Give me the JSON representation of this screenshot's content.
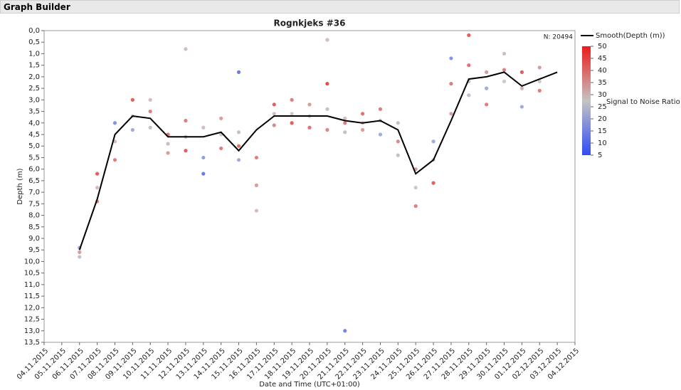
{
  "header": {
    "title": "Graph Builder"
  },
  "chart_data": {
    "type": "scatter",
    "title": "Rognkjeks #36",
    "x_label": "Date and Time (UTC+01:00)",
    "y_label": "Depth (m)",
    "count_label": "N: 20494",
    "y_reversed": true,
    "xlim": [
      "04.11.2015",
      "04.12.2015"
    ],
    "xticks": [
      "04.11.2015",
      "05.11.2015",
      "06.11.2015",
      "07.11.2015",
      "08.11.2015",
      "09.11.2015",
      "10.11.2015",
      "11.11.2015",
      "12.11.2015",
      "13.11.2015",
      "14.11.2015",
      "15.11.2015",
      "16.11.2015",
      "17.11.2015",
      "18.11.2015",
      "19.11.2015",
      "20.11.2015",
      "21.11.2015",
      "22.11.2015",
      "23.11.2015",
      "24.11.2015",
      "25.11.2015",
      "26.11.2015",
      "27.11.2015",
      "28.11.2015",
      "29.11.2015",
      "30.11.2015",
      "01.12.2015",
      "02.12.2015",
      "03.12.2015",
      "04.12.2015"
    ],
    "ylim": [
      0,
      13.5
    ],
    "yticks": [
      {
        "value": 0,
        "label": "0,0"
      },
      {
        "value": 0.5,
        "label": "0,5"
      },
      {
        "value": 1,
        "label": "1,0"
      },
      {
        "value": 1.5,
        "label": "1,5"
      },
      {
        "value": 2,
        "label": "2,0"
      },
      {
        "value": 2.5,
        "label": "2,5"
      },
      {
        "value": 3,
        "label": "3,0"
      },
      {
        "value": 3.5,
        "label": "3,5"
      },
      {
        "value": 4,
        "label": "4,0"
      },
      {
        "value": 4.5,
        "label": "4,5"
      },
      {
        "value": 5,
        "label": "5,0"
      },
      {
        "value": 5.5,
        "label": "5,5"
      },
      {
        "value": 6,
        "label": "6,0"
      },
      {
        "value": 6.5,
        "label": "6,5"
      },
      {
        "value": 7,
        "label": "7,0"
      },
      {
        "value": 7.5,
        "label": "7,5"
      },
      {
        "value": 8,
        "label": "8,0"
      },
      {
        "value": 8.5,
        "label": "8,5"
      },
      {
        "value": 9,
        "label": "9,0"
      },
      {
        "value": 9.5,
        "label": "9,5"
      },
      {
        "value": 10,
        "label": "10,0"
      },
      {
        "value": 10.5,
        "label": "10,5"
      },
      {
        "value": 11,
        "label": "11,0"
      },
      {
        "value": 11.5,
        "label": "11,5"
      },
      {
        "value": 12,
        "label": "12,0"
      },
      {
        "value": 12.5,
        "label": "12,5"
      },
      {
        "value": 13,
        "label": "13,0"
      },
      {
        "value": 13.5,
        "label": "13,5"
      }
    ],
    "points": {
      "x": [
        "06.11.2015",
        "06.11.2015",
        "06.11.2015",
        "07.11.2015",
        "07.11.2015",
        "07.11.2015",
        "08.11.2015",
        "08.11.2015",
        "08.11.2015",
        "09.11.2015",
        "09.11.2015",
        "09.11.2015",
        "10.11.2015",
        "10.11.2015",
        "10.11.2015",
        "11.11.2015",
        "11.11.2015",
        "11.11.2015",
        "12.11.2015",
        "12.11.2015",
        "12.11.2015",
        "13.11.2015",
        "13.11.2015",
        "13.11.2015",
        "14.11.2015",
        "14.11.2015",
        "14.11.2015",
        "15.11.2015",
        "15.11.2015",
        "15.11.2015",
        "16.11.2015",
        "16.11.2015",
        "16.11.2015",
        "17.11.2015",
        "17.11.2015",
        "17.11.2015",
        "18.11.2015",
        "18.11.2015",
        "18.11.2015",
        "19.11.2015",
        "19.11.2015",
        "19.11.2015",
        "20.11.2015",
        "20.11.2015",
        "20.11.2015",
        "21.11.2015",
        "21.11.2015",
        "21.11.2015",
        "22.11.2015",
        "22.11.2015",
        "22.11.2015",
        "23.11.2015",
        "23.11.2015",
        "23.11.2015",
        "24.11.2015",
        "24.11.2015",
        "24.11.2015",
        "25.11.2015",
        "25.11.2015",
        "25.11.2015",
        "26.11.2015",
        "26.11.2015",
        "26.11.2015",
        "27.11.2015",
        "27.11.2015",
        "27.11.2015",
        "28.11.2015",
        "28.11.2015",
        "28.11.2015",
        "29.11.2015",
        "29.11.2015",
        "29.11.2015",
        "30.11.2015",
        "30.11.2015",
        "30.11.2015",
        "01.12.2015",
        "01.12.2015",
        "01.12.2015",
        "02.12.2015",
        "02.12.2015",
        "02.12.2015",
        "12.11.2015",
        "20.11.2015",
        "21.11.2015",
        "15.11.2015",
        "28.11.2015"
      ],
      "y": [
        9.4,
        9.6,
        9.8,
        6.2,
        6.8,
        7.4,
        4.0,
        4.8,
        5.6,
        3.0,
        3.7,
        4.3,
        3.0,
        3.5,
        4.2,
        4.5,
        4.9,
        5.3,
        3.9,
        4.6,
        5.2,
        4.2,
        5.5,
        6.2,
        3.8,
        4.5,
        5.1,
        4.4,
        5.0,
        5.6,
        5.5,
        6.7,
        7.8,
        3.2,
        3.6,
        4.1,
        3.0,
        3.6,
        4.0,
        3.2,
        3.7,
        4.2,
        2.3,
        3.4,
        4.3,
        3.8,
        4.0,
        4.4,
        3.6,
        4.0,
        4.3,
        3.4,
        3.9,
        4.5,
        4.0,
        4.8,
        5.4,
        6.0,
        6.8,
        7.6,
        4.8,
        5.6,
        6.6,
        1.2,
        2.3,
        3.6,
        1.5,
        2.2,
        2.8,
        1.8,
        2.5,
        3.2,
        1.0,
        1.7,
        2.2,
        1.8,
        2.5,
        3.3,
        1.6,
        2.2,
        2.6,
        0.8,
        0.4,
        13.0,
        1.8,
        0.2
      ],
      "snr": [
        20,
        35,
        25,
        45,
        30,
        38,
        15,
        30,
        40,
        45,
        28,
        20,
        30,
        40,
        25,
        42,
        30,
        35,
        40,
        25,
        45,
        30,
        18,
        10,
        35,
        28,
        40,
        30,
        42,
        20,
        40,
        35,
        30,
        45,
        30,
        38,
        40,
        28,
        45,
        35,
        30,
        42,
        48,
        30,
        38,
        30,
        40,
        25,
        42,
        28,
        35,
        40,
        30,
        20,
        30,
        38,
        25,
        35,
        28,
        40,
        20,
        30,
        45,
        15,
        40,
        35,
        42,
        30,
        25,
        35,
        20,
        40,
        30,
        40,
        28,
        45,
        32,
        20,
        35,
        28,
        40,
        30,
        30,
        12,
        10,
        45
      ]
    },
    "smooth": {
      "name": "Smooth(Depth (m))",
      "color": "#000000",
      "x": [
        "06.11.2015",
        "07.11.2015",
        "08.11.2015",
        "09.11.2015",
        "10.11.2015",
        "11.11.2015",
        "12.11.2015",
        "13.11.2015",
        "14.11.2015",
        "15.11.2015",
        "16.11.2015",
        "17.11.2015",
        "18.11.2015",
        "19.11.2015",
        "20.11.2015",
        "21.11.2015",
        "22.11.2015",
        "23.11.2015",
        "24.11.2015",
        "25.11.2015",
        "26.11.2015",
        "27.11.2015",
        "28.11.2015",
        "29.11.2015",
        "30.11.2015",
        "01.12.2015",
        "02.12.2015",
        "03.12.2015"
      ],
      "values": [
        9.5,
        7.3,
        4.5,
        3.7,
        3.8,
        4.6,
        4.6,
        4.6,
        4.4,
        5.2,
        4.3,
        3.7,
        3.7,
        3.7,
        3.7,
        3.9,
        4.0,
        3.9,
        4.3,
        6.2,
        5.6,
        3.9,
        2.1,
        2.0,
        1.8,
        2.4,
        2.1,
        1.8
      ]
    },
    "colorbar": {
      "title": "Signal to Noise Ratio",
      "clim": [
        5,
        50
      ],
      "ticks": [
        5,
        10,
        15,
        20,
        25,
        30,
        35,
        40,
        45,
        50
      ],
      "low_color": "#2e4cf5",
      "mid_color": "#c4c4c4",
      "high_color": "#ec1c1c"
    }
  }
}
